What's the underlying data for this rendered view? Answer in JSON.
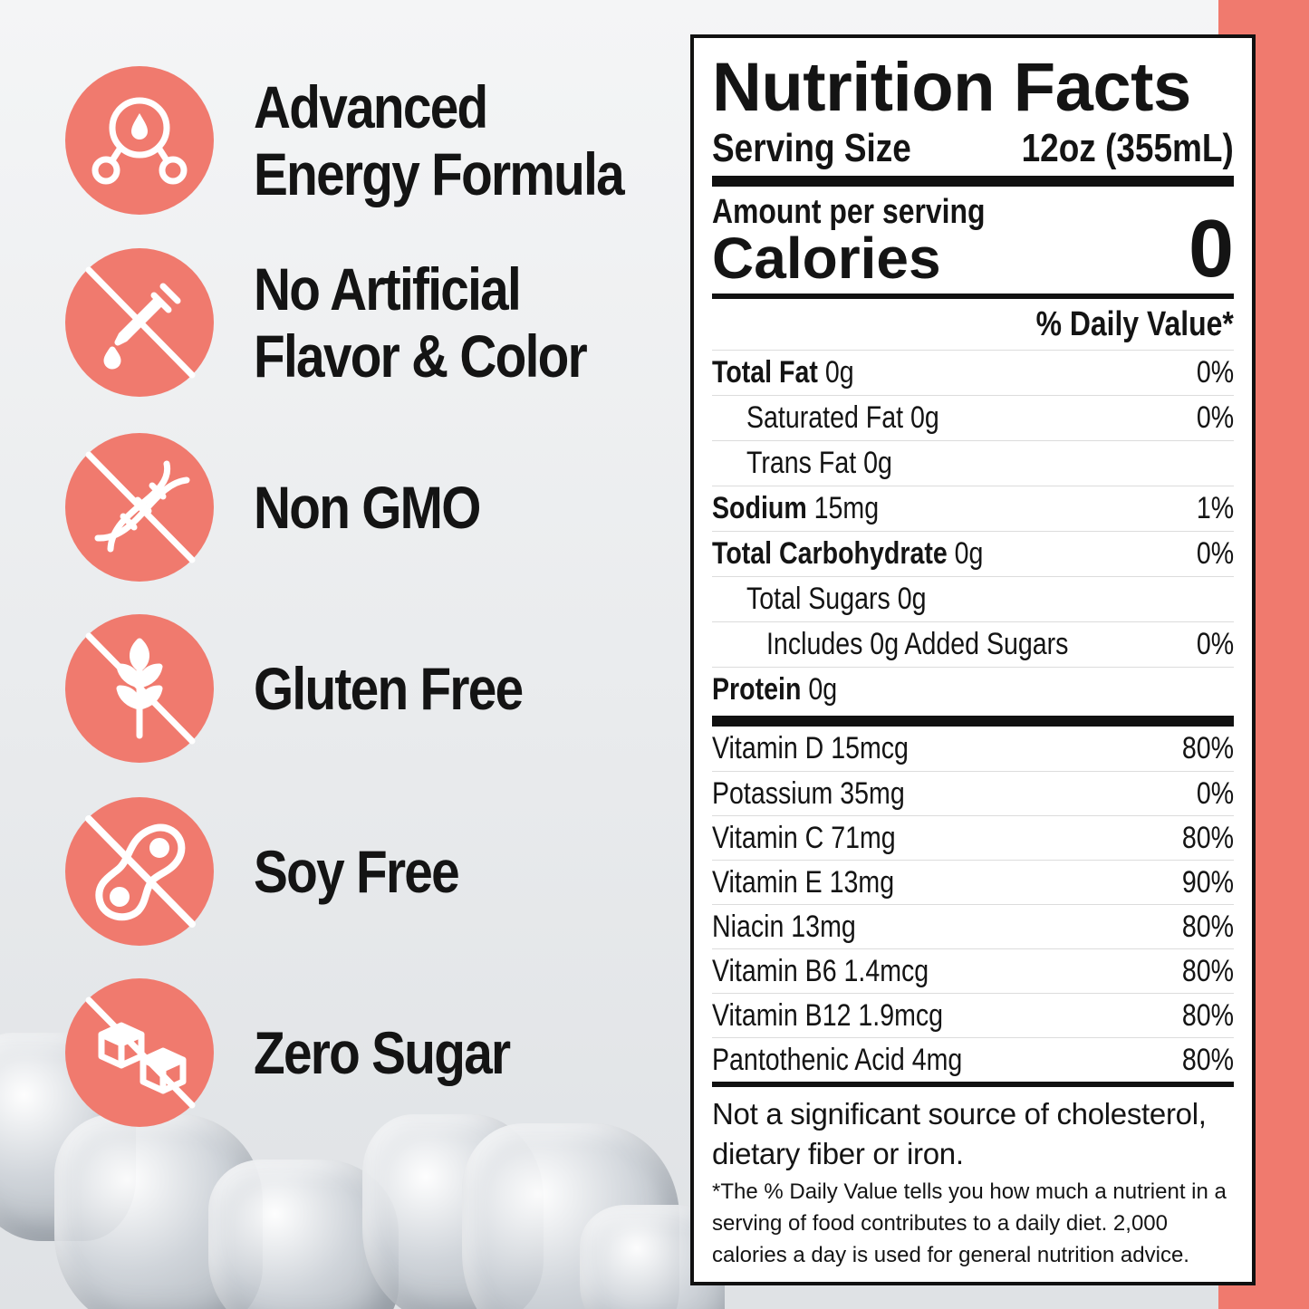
{
  "features": [
    {
      "icon": "molecule-drop-icon",
      "lines": [
        "Advanced",
        "Energy Formula"
      ]
    },
    {
      "icon": "no-dropper-icon",
      "lines": [
        "No Artificial",
        "Flavor & Color"
      ]
    },
    {
      "icon": "no-dna-icon",
      "lines": [
        "Non GMO"
      ]
    },
    {
      "icon": "no-wheat-icon",
      "lines": [
        "Gluten Free"
      ]
    },
    {
      "icon": "no-soybean-icon",
      "lines": [
        "Soy Free"
      ]
    },
    {
      "icon": "no-sugar-cubes-icon",
      "lines": [
        "Zero Sugar"
      ]
    }
  ],
  "colors": {
    "accent": "#f07a6e",
    "text": "#141414"
  },
  "nutrition": {
    "title": "Nutrition Facts",
    "serving_label": "Serving Size",
    "serving_value": "12oz (355mL)",
    "amount_per_serving": "Amount per serving",
    "calories_label": "Calories",
    "calories_value": "0",
    "dv_header": "% Daily Value*",
    "rows": [
      {
        "bold": "Total Fat",
        "rest": " 0g",
        "dv": "0%",
        "indent": 0
      },
      {
        "bold": "",
        "rest": "Saturated Fat 0g",
        "dv": "0%",
        "indent": 1
      },
      {
        "bold": "",
        "rest": "Trans Fat 0g",
        "dv": "",
        "indent": 1
      },
      {
        "bold": "Sodium",
        "rest": " 15mg",
        "dv": "1%",
        "indent": 0
      },
      {
        "bold": "Total Carbohydrate",
        "rest": " 0g",
        "dv": "0%",
        "indent": 0
      },
      {
        "bold": "",
        "rest": "Total Sugars 0g",
        "dv": "",
        "indent": 1
      },
      {
        "bold": "",
        "rest": "Includes 0g Added Sugars",
        "dv": "0%",
        "indent": 2
      },
      {
        "bold": "Protein",
        "rest": " 0g",
        "dv": "",
        "indent": 0
      }
    ],
    "vitamins": [
      {
        "name": "Vitamin D 15mcg",
        "dv": "80%"
      },
      {
        "name": "Potassium 35mg",
        "dv": "0%"
      },
      {
        "name": "Vitamin C 71mg",
        "dv": "80%"
      },
      {
        "name": "Vitamin E 13mg",
        "dv": "90%"
      },
      {
        "name": "Niacin 13mg",
        "dv": "80%"
      },
      {
        "name": "Vitamin B6 1.4mcg",
        "dv": "80%"
      },
      {
        "name": "Vitamin B12 1.9mcg",
        "dv": "80%"
      },
      {
        "name": "Pantothenic Acid 4mg",
        "dv": "80%"
      }
    ],
    "note_cholesterol": "Not a significant source of cholesterol, dietary fiber or iron.",
    "note_dv": "*The % Daily Value tells you how much a nutrient in a serving of food contributes to a daily diet. 2,000 calories a day is used for general nutrition advice."
  }
}
